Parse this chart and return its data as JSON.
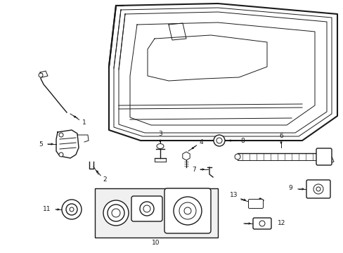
{
  "background_color": "#ffffff",
  "fig_width": 4.89,
  "fig_height": 3.6,
  "dpi": 100,
  "line_color": "#1a1a1a",
  "label_fontsize": 6.5,
  "label_color": "#111111"
}
